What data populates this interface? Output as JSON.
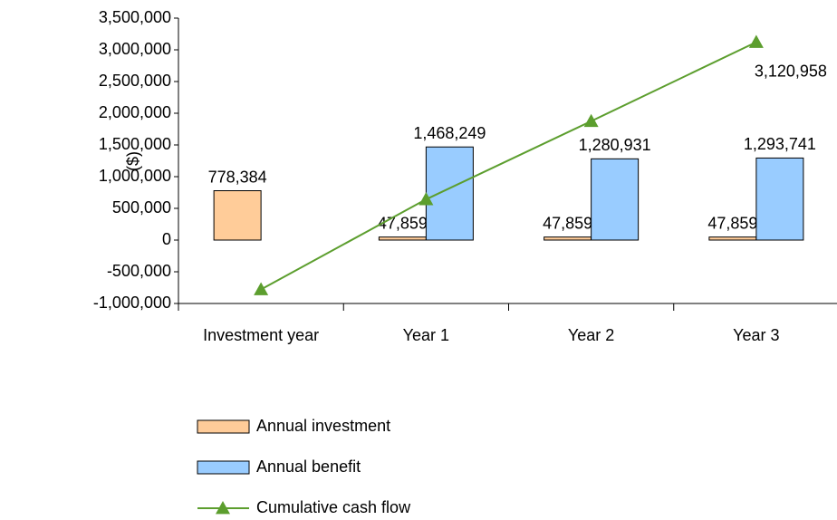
{
  "chart_data": {
    "type": "bar",
    "y_label": "($)",
    "categories": [
      "Investment year",
      "Year 1",
      "Year 2",
      "Year 3"
    ],
    "series": [
      {
        "name": "Annual investment",
        "type": "bar",
        "color": "#ffcc99",
        "values": [
          778384,
          47859,
          47859,
          47859
        ],
        "value_labels": [
          "778,384",
          "47,859",
          "47,859",
          "47,859"
        ]
      },
      {
        "name": "Annual benefit",
        "type": "bar",
        "color": "#99ccff",
        "values": [
          null,
          1468249,
          1280931,
          1293741
        ],
        "value_labels": [
          null,
          "1,468,249",
          "1,280,931",
          "1,293,741"
        ]
      },
      {
        "name": "Cumulative cash flow",
        "type": "line",
        "color": "#5c9e2e",
        "values": [
          -778384,
          642006,
          1875078,
          3120958
        ],
        "value_labels": [
          null,
          null,
          null,
          "3,120,958"
        ]
      }
    ],
    "ylim": [
      -1000000,
      3500000
    ],
    "yticks": [
      {
        "value": -1000000,
        "label": "-1,000,000"
      },
      {
        "value": -500000,
        "label": "-500,000"
      },
      0,
      {
        "value": 500000,
        "label": "500,000"
      },
      {
        "value": 1000000,
        "label": "1,000,000"
      },
      {
        "value": 1500000,
        "label": "1,500,000"
      },
      {
        "value": 2000000,
        "label": "2,000,000"
      },
      {
        "value": 2500000,
        "label": "2,500,000"
      },
      {
        "value": 3000000,
        "label": "3,000,000"
      },
      {
        "value": 3500000,
        "label": "3,500,000"
      }
    ],
    "legend": "bottom"
  }
}
